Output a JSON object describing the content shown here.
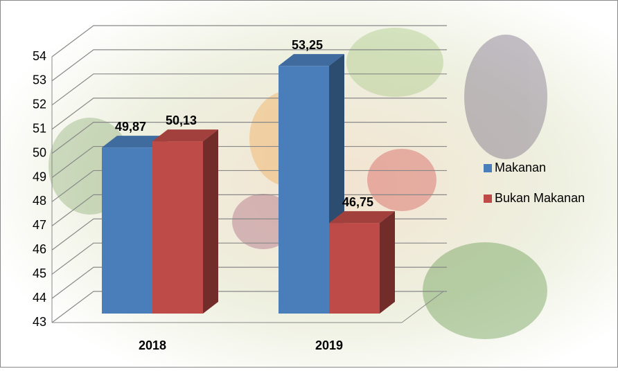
{
  "chart_data": {
    "type": "bar3d",
    "categories": [
      "2018",
      "2019"
    ],
    "series": [
      {
        "name": "Makanan",
        "color": "#4a7ebb",
        "values": [
          49.87,
          53.25
        ],
        "value_labels": [
          "49,87",
          "53,25"
        ]
      },
      {
        "name": "Bukan Makanan",
        "color": "#be4b48",
        "values": [
          50.13,
          46.75
        ],
        "value_labels": [
          "50,13",
          "46,75"
        ]
      }
    ],
    "ylim": [
      43,
      54
    ],
    "yticks": [
      43,
      44,
      45,
      46,
      47,
      48,
      49,
      50,
      51,
      52,
      53,
      54
    ],
    "grid": true,
    "legend": "right"
  }
}
